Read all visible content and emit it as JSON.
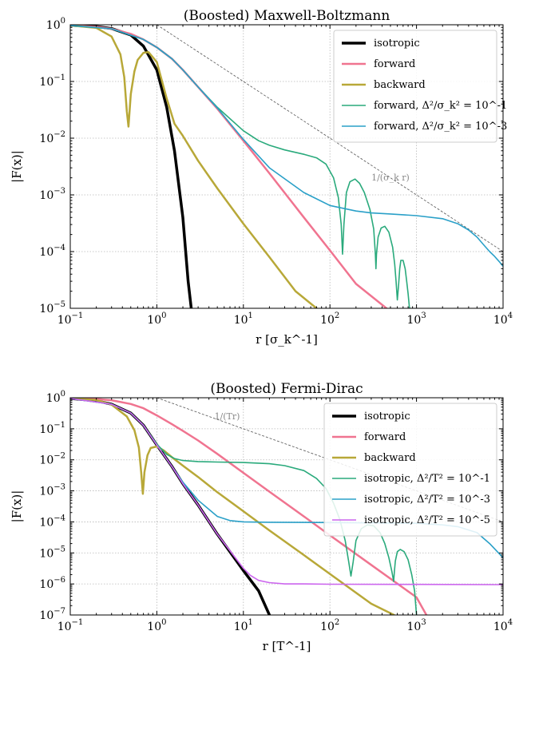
{
  "chart_data": [
    {
      "type": "line",
      "title": "(Boosted) Maxwell-Boltzmann",
      "xlabel": "r [σ_k^-1]",
      "ylabel": "|F(x)|",
      "xscale": "log",
      "yscale": "log",
      "xlim": [
        0.1,
        10000
      ],
      "ylim": [
        1e-05,
        1
      ],
      "xticks": [
        {
          "base": "10",
          "exp": "−1"
        },
        {
          "base": "10",
          "exp": "0"
        },
        {
          "base": "10",
          "exp": "1"
        },
        {
          "base": "10",
          "exp": "2"
        },
        {
          "base": "10",
          "exp": "3"
        },
        {
          "base": "10",
          "exp": "4"
        }
      ],
      "yticks": [
        {
          "base": "10",
          "exp": "−5"
        },
        {
          "base": "10",
          "exp": "−4"
        },
        {
          "base": "10",
          "exp": "−3"
        },
        {
          "base": "10",
          "exp": "−2"
        },
        {
          "base": "10",
          "exp": "−1"
        },
        {
          "base": "10",
          "exp": "0"
        }
      ],
      "grid": true,
      "legend_position": "top-right",
      "annotation": {
        "text": "1/(σ_k r)",
        "x": 500,
        "y": 0.0018
      },
      "series": [
        {
          "name": "isotropic",
          "color": "#000000",
          "width": 3.5,
          "x": [
            0.1,
            0.2,
            0.3,
            0.5,
            0.7,
            1.0,
            1.3,
            1.6,
            2.0,
            2.3,
            2.5
          ],
          "y": [
            0.98,
            0.93,
            0.86,
            0.66,
            0.42,
            0.16,
            0.035,
            0.006,
            0.0004,
            3e-05,
            1e-05
          ]
        },
        {
          "name": "forward",
          "color": "#f07490",
          "width": 2.5,
          "x": [
            0.1,
            0.2,
            0.3,
            0.5,
            0.7,
            1.0,
            1.5,
            2.0,
            3.0,
            5.0,
            10,
            20,
            50,
            100,
            200,
            450
          ],
          "y": [
            0.97,
            0.92,
            0.85,
            0.69,
            0.55,
            0.4,
            0.25,
            0.16,
            0.08,
            0.033,
            0.009,
            0.0024,
            0.0004,
            0.000105,
            2.7e-05,
            1e-05
          ]
        },
        {
          "name": "backward",
          "color": "#b8a838",
          "width": 2.5,
          "x": [
            0.1,
            0.2,
            0.3,
            0.38,
            0.42,
            0.45,
            0.47,
            0.5,
            0.55,
            0.6,
            0.7,
            0.8,
            1.0,
            1.3,
            1.6,
            2.0,
            3.0,
            5.0,
            10,
            20,
            40,
            70
          ],
          "y": [
            0.97,
            0.88,
            0.62,
            0.3,
            0.12,
            0.03,
            0.016,
            0.06,
            0.15,
            0.24,
            0.32,
            0.33,
            0.22,
            0.05,
            0.018,
            0.011,
            0.004,
            0.0013,
            0.00031,
            8e-05,
            2e-05,
            1e-05
          ]
        },
        {
          "name": "forward, Δ²/σ_k² = 10^-1",
          "color": "#2aaa7c",
          "width": 1.6,
          "x": [
            0.1,
            0.3,
            0.7,
            1.0,
            1.5,
            2,
            3,
            5,
            10,
            15,
            20,
            30,
            50,
            70,
            90,
            110,
            125,
            135,
            140,
            145,
            155,
            170,
            195,
            220,
            250,
            290,
            320,
            335,
            340,
            345,
            360,
            390,
            430,
            480,
            530,
            560,
            580,
            600,
            620,
            640,
            660,
            700,
            740,
            770,
            800,
            830,
            850
          ],
          "y": [
            0.97,
            0.85,
            0.55,
            0.4,
            0.25,
            0.16,
            0.08,
            0.035,
            0.0135,
            0.009,
            0.0075,
            0.0062,
            0.0052,
            0.0045,
            0.0035,
            0.002,
            0.0009,
            0.0003,
            9e-05,
            0.0003,
            0.0011,
            0.0017,
            0.0019,
            0.0016,
            0.0011,
            0.00055,
            0.00025,
            9e-05,
            5e-05,
            9e-05,
            0.00018,
            0.00026,
            0.00028,
            0.00022,
            0.00012,
            6e-05,
            3e-05,
            1.4e-05,
            2.5e-05,
            5e-05,
            7e-05,
            7e-05,
            5e-05,
            3e-05,
            1.8e-05,
            1e-05,
            1e-05
          ]
        },
        {
          "name": "forward, Δ²/σ_k² = 10^-3",
          "color": "#2aa0c8",
          "width": 1.6,
          "x": [
            0.1,
            0.3,
            0.7,
            1.0,
            1.5,
            2,
            3,
            5,
            10,
            20,
            50,
            100,
            200,
            300,
            500,
            1000,
            2000,
            3000,
            4000,
            5000,
            6000,
            7000,
            8000,
            9000,
            10000
          ],
          "y": [
            0.97,
            0.85,
            0.55,
            0.4,
            0.25,
            0.16,
            0.08,
            0.034,
            0.0095,
            0.003,
            0.0011,
            0.00065,
            0.00052,
            0.00048,
            0.00046,
            0.00043,
            0.00038,
            0.00031,
            0.00024,
            0.00018,
            0.00013,
            0.0001,
            8.2e-05,
            6.7e-05,
            5.5e-05
          ]
        }
      ],
      "reference_line": {
        "x": [
          1,
          10000
        ],
        "y": [
          1,
          0.0001
        ]
      }
    },
    {
      "type": "line",
      "title": "(Boosted) Fermi-Dirac",
      "xlabel": "r [T^-1]",
      "ylabel": "|F(x)|",
      "xscale": "log",
      "yscale": "log",
      "xlim": [
        0.1,
        10000
      ],
      "ylim": [
        1e-07,
        1
      ],
      "xticks": [
        {
          "base": "10",
          "exp": "−1"
        },
        {
          "base": "10",
          "exp": "0"
        },
        {
          "base": "10",
          "exp": "1"
        },
        {
          "base": "10",
          "exp": "2"
        },
        {
          "base": "10",
          "exp": "3"
        },
        {
          "base": "10",
          "exp": "4"
        }
      ],
      "yticks": [
        {
          "base": "10",
          "exp": "−7"
        },
        {
          "base": "10",
          "exp": "−6"
        },
        {
          "base": "10",
          "exp": "−5"
        },
        {
          "base": "10",
          "exp": "−4"
        },
        {
          "base": "10",
          "exp": "−3"
        },
        {
          "base": "10",
          "exp": "−2"
        },
        {
          "base": "10",
          "exp": "−1"
        },
        {
          "base": "10",
          "exp": "0"
        }
      ],
      "grid": true,
      "legend_position": "top-right",
      "annotation": {
        "text": "1/(Tr)",
        "x": 6.5,
        "y": 0.2
      },
      "series": [
        {
          "name": "isotropic",
          "color": "#000000",
          "width": 3.5,
          "x": [
            0.1,
            0.2,
            0.3,
            0.5,
            0.7,
            1.0,
            1.5,
            2,
            3,
            5,
            10,
            15,
            20
          ],
          "y": [
            0.95,
            0.8,
            0.62,
            0.32,
            0.13,
            0.03,
            0.006,
            0.0017,
            0.00035,
            4e-05,
            2.7e-06,
            6e-07,
            1e-07
          ]
        },
        {
          "name": "forward",
          "color": "#f07490",
          "width": 2.5,
          "x": [
            0.1,
            0.2,
            0.3,
            0.5,
            0.7,
            1.0,
            1.5,
            2,
            3,
            5,
            10,
            20,
            50,
            100,
            300,
            1000,
            1300
          ],
          "y": [
            0.97,
            0.91,
            0.83,
            0.63,
            0.46,
            0.27,
            0.14,
            0.086,
            0.042,
            0.0155,
            0.0038,
            0.00094,
            0.00015,
            3.7e-05,
            4.1e-06,
            3.7e-07,
            1e-07
          ]
        },
        {
          "name": "backward",
          "color": "#b8a838",
          "width": 2.5,
          "x": [
            0.1,
            0.2,
            0.3,
            0.45,
            0.55,
            0.62,
            0.66,
            0.69,
            0.72,
            0.78,
            0.85,
            1.0,
            1.2,
            1.5,
            2,
            3,
            5,
            10,
            20,
            50,
            100,
            300,
            550
          ],
          "y": [
            0.96,
            0.84,
            0.6,
            0.25,
            0.09,
            0.025,
            0.004,
            0.0008,
            0.004,
            0.014,
            0.024,
            0.027,
            0.02,
            0.012,
            0.0065,
            0.0028,
            0.0009,
            0.00022,
            5.3e-05,
            8.5e-06,
            2.1e-06,
            2.3e-07,
            1e-07
          ]
        },
        {
          "name": "isotropic, Δ²/T² = 10^-1",
          "color": "#2aaa7c",
          "width": 1.6,
          "x": [
            0.1,
            0.3,
            0.5,
            0.7,
            1.0,
            1.3,
            1.6,
            2,
            3,
            5,
            10,
            20,
            30,
            50,
            70,
            90,
            110,
            130,
            150,
            165,
            175,
            185,
            200,
            230,
            270,
            320,
            380,
            430,
            480,
            520,
            545,
            555,
            570,
            600,
            650,
            720,
            800,
            880,
            950,
            1000
          ],
          "y": [
            0.95,
            0.62,
            0.32,
            0.13,
            0.032,
            0.015,
            0.011,
            0.0095,
            0.0088,
            0.0085,
            0.0082,
            0.0075,
            0.0065,
            0.0045,
            0.0025,
            0.0012,
            0.0004,
            0.00012,
            2.5e-05,
            5e-06,
            1.8e-06,
            5e-06,
            2.5e-05,
            6e-05,
            8e-05,
            7.5e-05,
            4.5e-05,
            2e-05,
            7e-06,
            2.5e-06,
            1.2e-06,
            2.5e-06,
            5.5e-06,
            1.1e-05,
            1.3e-05,
            1.1e-05,
            6e-06,
            2e-06,
            6e-07,
            1e-07
          ]
        },
        {
          "name": "isotropic, Δ²/T² = 10^-3",
          "color": "#2aa0c8",
          "width": 1.6,
          "x": [
            0.1,
            0.3,
            0.5,
            0.7,
            1.0,
            1.5,
            2,
            3,
            5,
            7,
            10,
            20,
            50,
            100,
            300,
            1000,
            2000,
            3000,
            5000,
            7000,
            10000
          ],
          "y": [
            0.95,
            0.62,
            0.32,
            0.13,
            0.03,
            0.006,
            0.0019,
            0.0005,
            0.00015,
            0.00011,
            0.0001,
            9.7e-05,
            9.6e-05,
            9.5e-05,
            9.3e-05,
            9e-05,
            8e-05,
            7e-05,
            4.5e-05,
            2e-05,
            7e-06
          ]
        },
        {
          "name": "isotropic, Δ²/T² = 10^-5",
          "color": "#cc66ee",
          "width": 1.6,
          "x": [
            0.1,
            0.3,
            0.5,
            0.7,
            1.0,
            1.5,
            2,
            3,
            5,
            10,
            12,
            15,
            20,
            30,
            50,
            100,
            1000,
            10000
          ],
          "y": [
            0.95,
            0.62,
            0.32,
            0.13,
            0.03,
            0.006,
            0.0017,
            0.00035,
            4e-05,
            3.2e-06,
            1.9e-06,
            1.3e-06,
            1.1e-06,
            1e-06,
            1e-06,
            9.8e-07,
            9.7e-07,
            9.5e-07
          ]
        }
      ],
      "reference_line": {
        "x": [
          1,
          10000
        ],
        "y": [
          1,
          0.0001
        ]
      }
    }
  ]
}
